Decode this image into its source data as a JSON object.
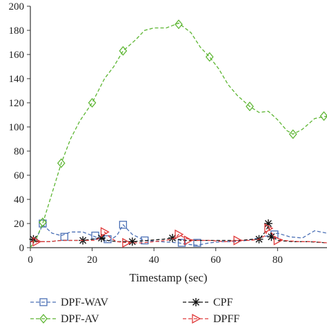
{
  "chart_data": {
    "type": "line",
    "xlabel": "Timestamp (sec)",
    "ylabel": "",
    "xlim": [
      0,
      96
    ],
    "ylim": [
      0,
      200
    ],
    "x_ticks": [
      "0",
      "20",
      "40",
      "60",
      "80"
    ],
    "y_ticks": [
      "0",
      "20",
      "40",
      "60",
      "80",
      "100",
      "120",
      "140",
      "160",
      "180",
      "200"
    ],
    "grid": false,
    "legend_position": "bottom",
    "series": [
      {
        "name": "DPF-WAV",
        "color": "#4a6fb5",
        "marker": "square",
        "line": [
          [
            0,
            5
          ],
          [
            2,
            8
          ],
          [
            4,
            19
          ],
          [
            7,
            12
          ],
          [
            10,
            10
          ],
          [
            13,
            13
          ],
          [
            17,
            13
          ],
          [
            20,
            10
          ],
          [
            23,
            7
          ],
          [
            25,
            5
          ],
          [
            28,
            10
          ],
          [
            30,
            19
          ],
          [
            33,
            11
          ],
          [
            37,
            6
          ],
          [
            42,
            5
          ],
          [
            48,
            4
          ],
          [
            50,
            3
          ],
          [
            54,
            2
          ],
          [
            58,
            4
          ],
          [
            62,
            5
          ],
          [
            66,
            5
          ],
          [
            70,
            6
          ],
          [
            74,
            8
          ],
          [
            77,
            10
          ],
          [
            80,
            12
          ],
          [
            84,
            9
          ],
          [
            88,
            8
          ],
          [
            92,
            14
          ],
          [
            96,
            12
          ]
        ],
        "markers": [
          [
            4,
            20
          ],
          [
            11,
            9
          ],
          [
            21,
            10
          ],
          [
            25,
            7
          ],
          [
            30,
            19
          ],
          [
            37,
            6
          ],
          [
            49,
            4
          ],
          [
            54,
            4
          ],
          [
            79,
            11
          ]
        ]
      },
      {
        "name": "DPF-AV",
        "color": "#5cb531",
        "marker": "diamond",
        "line": [
          [
            0,
            0
          ],
          [
            2,
            8
          ],
          [
            4,
            20
          ],
          [
            7,
            45
          ],
          [
            10,
            70
          ],
          [
            13,
            90
          ],
          [
            16,
            105
          ],
          [
            20,
            120
          ],
          [
            24,
            140
          ],
          [
            27,
            150
          ],
          [
            30,
            163
          ],
          [
            34,
            172
          ],
          [
            37,
            180
          ],
          [
            40,
            182
          ],
          [
            44,
            182
          ],
          [
            48,
            186
          ],
          [
            52,
            178
          ],
          [
            55,
            166
          ],
          [
            58,
            158
          ],
          [
            61,
            148
          ],
          [
            64,
            135
          ],
          [
            67,
            126
          ],
          [
            71,
            117
          ],
          [
            74,
            112
          ],
          [
            77,
            113
          ],
          [
            80,
            106
          ],
          [
            83,
            97
          ],
          [
            85,
            94
          ],
          [
            88,
            98
          ],
          [
            92,
            107
          ],
          [
            96,
            109
          ]
        ],
        "markers": [
          [
            4,
            21
          ],
          [
            10,
            70
          ],
          [
            20,
            120
          ],
          [
            30,
            163
          ],
          [
            48,
            185
          ],
          [
            58,
            158
          ],
          [
            71,
            117
          ],
          [
            85,
            94
          ],
          [
            95,
            109
          ]
        ]
      },
      {
        "name": "CPF",
        "color": "#111111",
        "marker": "asterisk",
        "line": [
          [
            0,
            7
          ],
          [
            3,
            5
          ],
          [
            6,
            5
          ],
          [
            10,
            6
          ],
          [
            13,
            6
          ],
          [
            17,
            6
          ],
          [
            20,
            7
          ],
          [
            23,
            8
          ],
          [
            25,
            6
          ],
          [
            28,
            5
          ],
          [
            33,
            5
          ],
          [
            38,
            6
          ],
          [
            43,
            7
          ],
          [
            46,
            8
          ],
          [
            49,
            6
          ],
          [
            52,
            6
          ],
          [
            56,
            6
          ],
          [
            62,
            6
          ],
          [
            68,
            6
          ],
          [
            72,
            7
          ],
          [
            74,
            7
          ],
          [
            76,
            13
          ],
          [
            77,
            18
          ],
          [
            78,
            10
          ],
          [
            80,
            6
          ],
          [
            85,
            5
          ],
          [
            90,
            5
          ],
          [
            96,
            4
          ]
        ],
        "markers": [
          [
            1,
            7
          ],
          [
            17,
            6
          ],
          [
            23,
            8
          ],
          [
            33,
            5
          ],
          [
            46,
            8
          ],
          [
            74,
            7
          ],
          [
            77,
            20
          ],
          [
            78,
            9
          ]
        ]
      },
      {
        "name": "DPFF",
        "color": "#e03b3b",
        "marker": "triangle-right",
        "line": [
          [
            0,
            5
          ],
          [
            3,
            5
          ],
          [
            6,
            5
          ],
          [
            10,
            6
          ],
          [
            14,
            6
          ],
          [
            18,
            6
          ],
          [
            21,
            6
          ],
          [
            23,
            9
          ],
          [
            24,
            13
          ],
          [
            26,
            8
          ],
          [
            28,
            5
          ],
          [
            32,
            4
          ],
          [
            36,
            4
          ],
          [
            40,
            5
          ],
          [
            44,
            6
          ],
          [
            47,
            8
          ],
          [
            48,
            11
          ],
          [
            50,
            8
          ],
          [
            53,
            6
          ],
          [
            58,
            6
          ],
          [
            63,
            5
          ],
          [
            67,
            6
          ],
          [
            71,
            6
          ],
          [
            74,
            7
          ],
          [
            76,
            10
          ],
          [
            77,
            16
          ],
          [
            79,
            9
          ],
          [
            82,
            6
          ],
          [
            87,
            5
          ],
          [
            92,
            5
          ],
          [
            96,
            4
          ]
        ],
        "markers": [
          [
            2,
            5
          ],
          [
            24,
            13
          ],
          [
            31,
            4
          ],
          [
            48,
            11
          ],
          [
            51,
            6
          ],
          [
            67,
            6
          ],
          [
            77,
            16
          ],
          [
            80,
            6
          ]
        ]
      }
    ]
  }
}
